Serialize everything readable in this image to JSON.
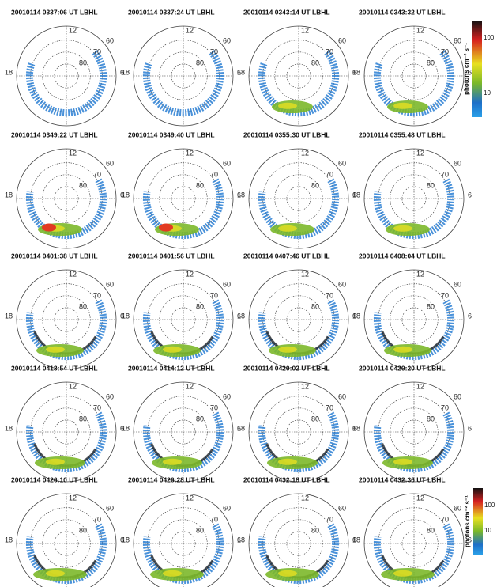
{
  "panels": [
    {
      "title": "20010114 0337:06 UT LBHL"
    },
    {
      "title": "20010114 0337:24 UT LBHL"
    },
    {
      "title": "20010114 0343:14 UT LBHL"
    },
    {
      "title": "20010114 0343:32 UT LBHL"
    },
    {
      "title": "20010114 0349:22 UT LBHL"
    },
    {
      "title": "20010114 0349:40 UT LBHL"
    },
    {
      "title": "20010114 0355:30 UT LBHL"
    },
    {
      "title": "20010114 0355:48 UT LBHL"
    },
    {
      "title": "20010114 0401:38 UT LBHL"
    },
    {
      "title": "20010114 0401:56 UT LBHL"
    },
    {
      "title": "20010114 0407:46 UT LBHL"
    },
    {
      "title": "20010114 0408:04 UT LBHL"
    },
    {
      "title": "20010114 0413:54 UT LBHL"
    },
    {
      "title": "20010114 0414:12 UT LBHL"
    },
    {
      "title": "20010114 0420:02 UT LBHL"
    },
    {
      "title": "20010114 0420:20 UT LBHL"
    },
    {
      "title": "20010114 0426:10 UT LBHL"
    },
    {
      "title": "20010114 0426:28 UT LBHL"
    },
    {
      "title": "20010114 0432:18 UT LBHL"
    },
    {
      "title": "20010114 0432:36 UT LBHL"
    }
  ],
  "labels": {
    "noon": "12",
    "dusk": "18",
    "dawn": "6",
    "lat60": "60",
    "lat70": "70",
    "lat80": "80"
  },
  "colorbars": [
    {
      "unit": "photons cm⁻² s⁻¹",
      "max": "100",
      "min": "10"
    },
    {
      "unit": "photons cm⁻² s⁻¹",
      "max": "100",
      "min": "10"
    }
  ]
}
